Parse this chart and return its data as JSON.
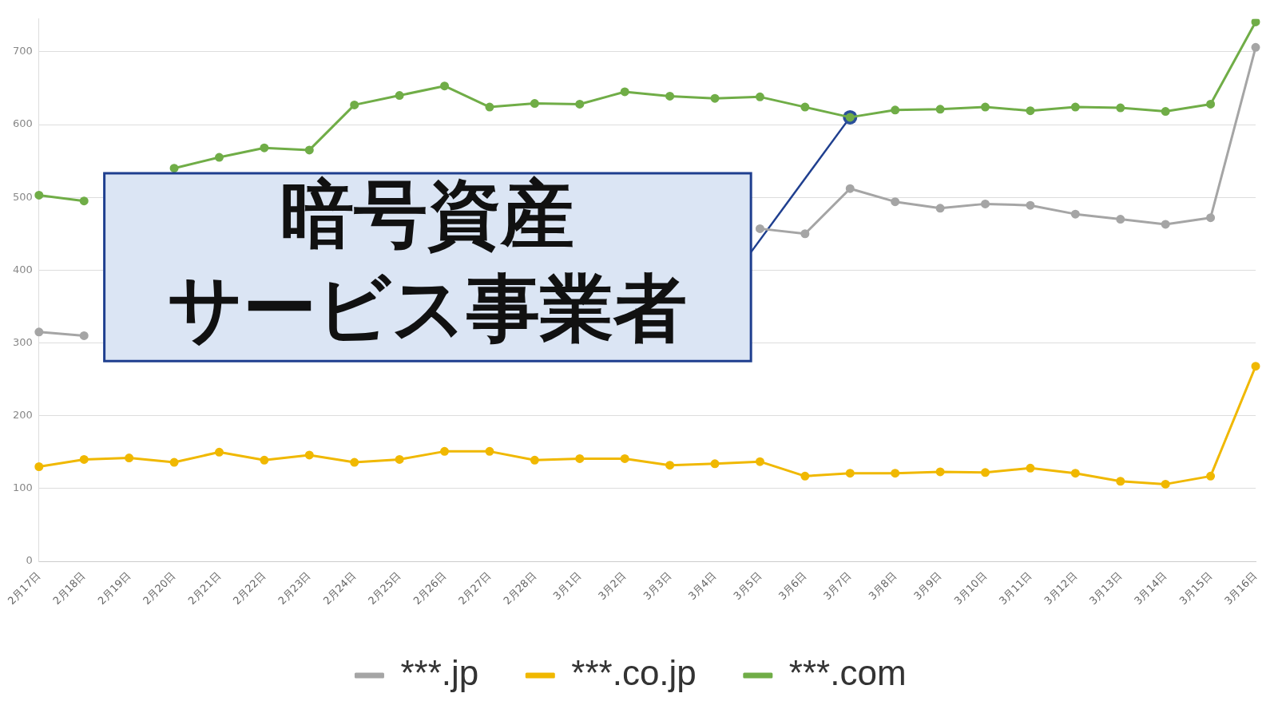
{
  "chart_data": {
    "type": "line",
    "categories": [
      "2月17日",
      "2月18日",
      "2月19日",
      "2月20日",
      "2月21日",
      "2月22日",
      "2月23日",
      "2月24日",
      "2月25日",
      "2月26日",
      "2月27日",
      "2月28日",
      "3月1日",
      "3月2日",
      "3月3日",
      "3月4日",
      "3月5日",
      "3月6日",
      "3月7日",
      "3月8日",
      "3月9日",
      "3月10日",
      "3月11日",
      "3月12日",
      "3月13日",
      "3月14日",
      "3月15日",
      "3月16日"
    ],
    "series": [
      {
        "name": "***.jp",
        "color": "#a5a5a5",
        "values": [
          315,
          310,
          null,
          null,
          null,
          null,
          null,
          null,
          null,
          null,
          null,
          null,
          null,
          null,
          null,
          null,
          457,
          450,
          512,
          494,
          485,
          491,
          489,
          477,
          470,
          463,
          472,
          706
        ]
      },
      {
        "name": "***.co.jp",
        "color": "#f0b800",
        "values": [
          130,
          140,
          142,
          136,
          150,
          139,
          146,
          136,
          140,
          151,
          151,
          139,
          141,
          141,
          132,
          134,
          137,
          117,
          121,
          121,
          123,
          122,
          128,
          121,
          110,
          106,
          117,
          268
        ]
      },
      {
        "name": "***.com",
        "color": "#70ad47",
        "values": [
          503,
          495,
          null,
          540,
          555,
          568,
          565,
          627,
          640,
          653,
          624,
          629,
          628,
          645,
          639,
          636,
          638,
          624,
          610,
          620,
          621,
          624,
          619,
          624,
          623,
          618,
          628,
          741
        ]
      }
    ],
    "ylim": [
      0,
      745
    ],
    "yticks": [
      0,
      100,
      200,
      300,
      400,
      500,
      600,
      700
    ],
    "grid": "y",
    "legend": "bottom",
    "marker": "circle",
    "line_style": "solid",
    "annotations": [
      "暗号資産",
      {
        "text": "サービス事業者",
        "x": "3月7日",
        "y": 610
      }
    ]
  }
}
